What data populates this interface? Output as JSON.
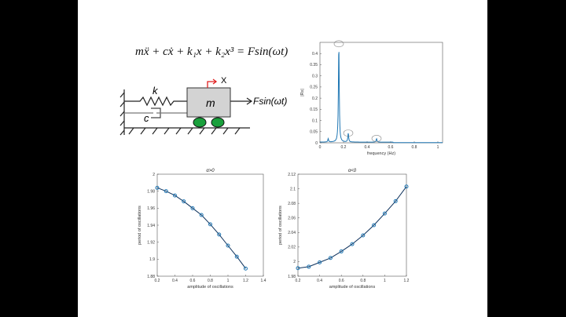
{
  "equation": "mẍ + cẋ + k₁x + k₂x³ = Fsin(ωt)",
  "diagram": {
    "spring_label": "k",
    "damper_label": "c",
    "mass_label": "m",
    "displacement_label": "X",
    "force_label": "Fsin(ωt)"
  },
  "colors": {
    "line": "#1f5f9f",
    "marker": "#1f77b4",
    "wheel": "#1aa03c",
    "mass": "#d3d3d3",
    "arrow": "#e02020"
  },
  "chart_data": [
    {
      "type": "line",
      "title": "",
      "xlabel": "frequency (Hz)",
      "ylabel": "|Rx|",
      "xlim": [
        0,
        1.04
      ],
      "ylim": [
        0,
        0.45
      ],
      "xticks": [
        0,
        0.2,
        0.4,
        0.6,
        0.8,
        1
      ],
      "xtick_labels": [
        "0",
        "0.2",
        "0.4",
        "0.6",
        "0.8",
        "1"
      ],
      "yticks": [
        0,
        0.05,
        0.1,
        0.15,
        0.2,
        0.25,
        0.3,
        0.35,
        0.4
      ],
      "ytick_labels": [
        "0",
        "0.05",
        "0.1",
        "0.15",
        "0.2",
        "0.25",
        "0.3",
        "0.35",
        "0.4"
      ],
      "peaks": [
        {
          "x": 0.07,
          "y": 0.015,
          "circled": false
        },
        {
          "x": 0.16,
          "y": 0.44,
          "circled": true
        },
        {
          "x": 0.24,
          "y": 0.04,
          "circled": true
        },
        {
          "x": 0.48,
          "y": 0.016,
          "circled": true
        }
      ]
    },
    {
      "type": "line",
      "title": "α>0",
      "xlabel": "amplitude of oscillations",
      "ylabel": "period of oscillations",
      "xlim": [
        0.2,
        1.4
      ],
      "ylim": [
        1.88,
        2.0
      ],
      "xticks": [
        0.2,
        0.4,
        0.6,
        0.8,
        1,
        1.2,
        1.4
      ],
      "xtick_labels": [
        "0.2",
        "0.4",
        "0.6",
        "0.8",
        "1",
        "1.2",
        "1.4"
      ],
      "yticks": [
        1.88,
        1.9,
        1.92,
        1.94,
        1.96,
        1.98,
        2.0
      ],
      "ytick_labels": [
        "1.88",
        "1.9",
        "1.92",
        "1.94",
        "1.96",
        "1.98",
        "2"
      ],
      "x": [
        0.2,
        0.3,
        0.4,
        0.5,
        0.6,
        0.7,
        0.8,
        0.9,
        1.0,
        1.1,
        1.2
      ],
      "y": [
        1.984,
        1.98,
        1.975,
        1.968,
        1.96,
        1.952,
        1.941,
        1.929,
        1.916,
        1.903,
        1.889
      ]
    },
    {
      "type": "line",
      "title": "α<0",
      "xlabel": "amplitude of oscillations",
      "ylabel": "period of oscillations",
      "xlim": [
        0.2,
        1.2
      ],
      "ylim": [
        1.98,
        2.12
      ],
      "xticks": [
        0.2,
        0.4,
        0.6,
        0.8,
        1,
        1.2
      ],
      "xtick_labels": [
        "0.2",
        "0.4",
        "0.6",
        "0.8",
        "1",
        "1.2"
      ],
      "yticks": [
        1.98,
        2.0,
        2.02,
        2.04,
        2.06,
        2.08,
        2.1,
        2.12
      ],
      "ytick_labels": [
        "1.98",
        "2",
        "2.02",
        "2.04",
        "2.06",
        "2.08",
        "2.1",
        "2.12"
      ],
      "x": [
        0.2,
        0.3,
        0.4,
        0.5,
        0.6,
        0.7,
        0.8,
        0.9,
        1.0,
        1.1,
        1.2
      ],
      "y": [
        1.991,
        1.993,
        1.999,
        2.005,
        2.014,
        2.024,
        2.036,
        2.05,
        2.066,
        2.083,
        2.103
      ]
    }
  ]
}
